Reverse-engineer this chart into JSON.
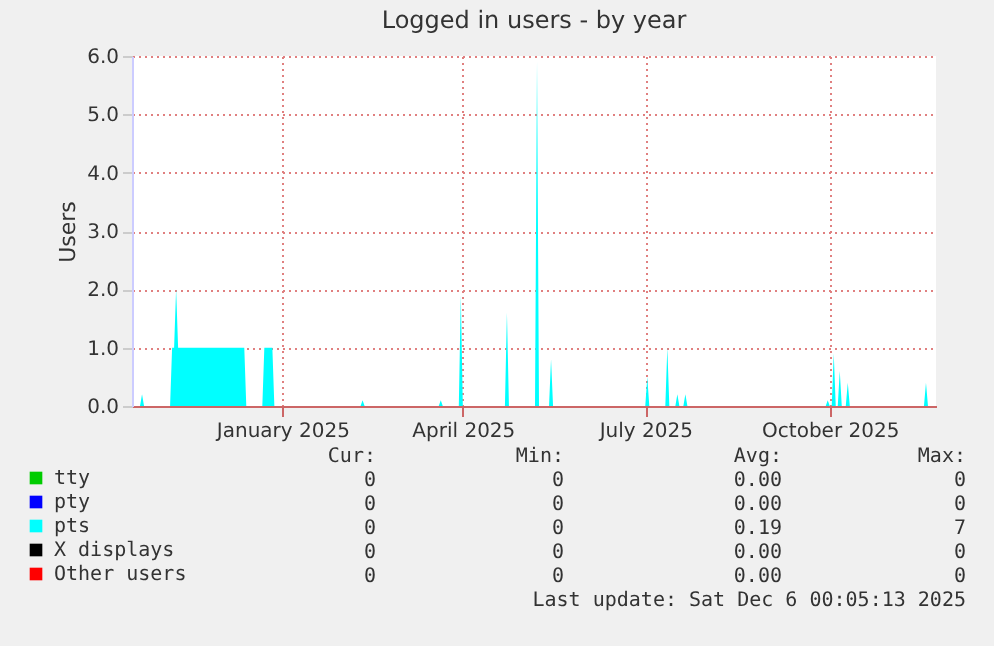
{
  "chart_data": {
    "type": "area",
    "title": "Logged in users - by year",
    "ylabel": "Users",
    "xlim": [
      "2024-11-01",
      "2025-12-07"
    ],
    "ylim": [
      0,
      6
    ],
    "xticks": [
      {
        "value": "2025-01-15",
        "label": "January 2025"
      },
      {
        "value": "2025-04-15",
        "label": "April 2025"
      },
      {
        "value": "2025-07-15",
        "label": "July 2025"
      },
      {
        "value": "2025-10-15",
        "label": "October 2025"
      }
    ],
    "yticks": [
      {
        "value": 0,
        "label": "0.0"
      },
      {
        "value": 1,
        "label": "1.0"
      },
      {
        "value": 2,
        "label": "2.0"
      },
      {
        "value": 3,
        "label": "3.0"
      },
      {
        "value": 4,
        "label": "4.0"
      },
      {
        "value": 5,
        "label": "5.0"
      },
      {
        "value": 6,
        "label": "6.0"
      }
    ],
    "grid": true,
    "legend": "bottom",
    "series": [
      {
        "name": "tty",
        "color": "#00cc00"
      },
      {
        "name": "pty",
        "color": "#0000ff"
      },
      {
        "name": "pts",
        "color": "#00ffff",
        "x": [
          "2024-11-01",
          "2024-11-05",
          "2024-11-06",
          "2024-11-07",
          "2024-11-20",
          "2024-11-21",
          "2024-11-22",
          "2024-11-23",
          "2024-11-24",
          "2024-12-27",
          "2024-12-28",
          "2025-01-05",
          "2025-01-06",
          "2025-01-10",
          "2025-01-11",
          "2025-02-23",
          "2025-02-24",
          "2025-02-25",
          "2025-04-03",
          "2025-04-04",
          "2025-04-05",
          "2025-04-13",
          "2025-04-14",
          "2025-04-15",
          "2025-05-06",
          "2025-05-07",
          "2025-05-08",
          "2025-05-21",
          "2025-05-22",
          "2025-05-23",
          "2025-05-28",
          "2025-05-29",
          "2025-05-30",
          "2025-07-15",
          "2025-07-16",
          "2025-07-17",
          "2025-07-25",
          "2025-07-26",
          "2025-07-27",
          "2025-07-30",
          "2025-07-31",
          "2025-08-01",
          "2025-08-03",
          "2025-08-04",
          "2025-08-05",
          "2025-10-13",
          "2025-10-14",
          "2025-10-15",
          "2025-10-16",
          "2025-10-17",
          "2025-10-18",
          "2025-10-19",
          "2025-10-20",
          "2025-10-21",
          "2025-10-23",
          "2025-10-24",
          "2025-10-25",
          "2025-12-01",
          "2025-12-02",
          "2025-12-03"
        ],
        "values": [
          0,
          0,
          0.2,
          0,
          0,
          1.0,
          1.0,
          2.0,
          1.0,
          1.0,
          0,
          0,
          1.0,
          1.0,
          0,
          0,
          0.1,
          0,
          0,
          0.1,
          0,
          0,
          1.9,
          0,
          0,
          1.6,
          0,
          0,
          5.9,
          0,
          0,
          0.8,
          0,
          0,
          0.5,
          0,
          0,
          1.0,
          0,
          0,
          0.2,
          0,
          0,
          0.2,
          0,
          0,
          0.1,
          0,
          0,
          0.9,
          0,
          0,
          0.6,
          0,
          0,
          0.4,
          0,
          0,
          0.4,
          0
        ]
      },
      {
        "name": "X displays",
        "color": "#000000"
      },
      {
        "name": "Other users",
        "color": "#ff0000"
      }
    ],
    "annotations": [
      "Cur:",
      "Min:",
      "Avg:",
      "Max:",
      "0",
      "0",
      "0.00",
      "0",
      "0",
      "0",
      "0.00",
      "0",
      "0",
      "0",
      "0.19",
      "7",
      "0",
      "0",
      "0.00",
      "0",
      "0",
      "0",
      "0.00",
      "0",
      "Last update: Sat Dec  6 00:05:13 2025"
    ]
  }
}
